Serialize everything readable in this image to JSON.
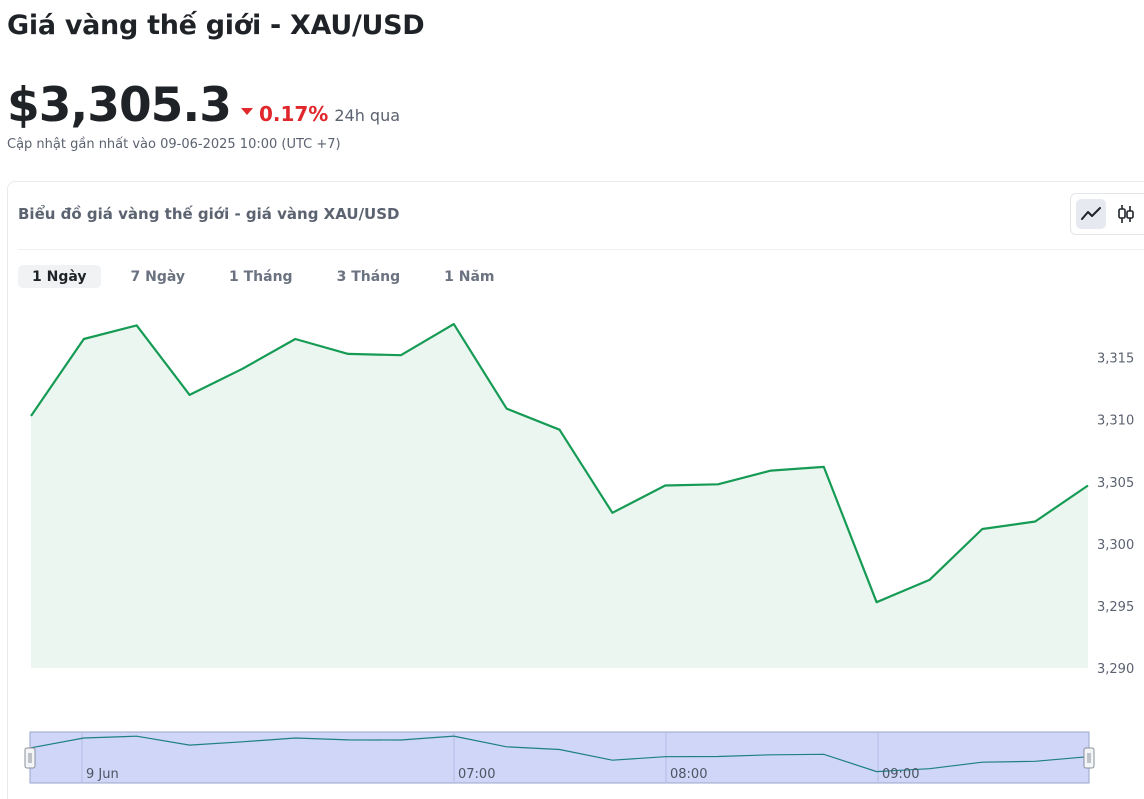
{
  "title": "Giá vàng thế giới - XAU/USD",
  "price": "$3,305.3",
  "change": "0.17%",
  "change_period": "24h qua",
  "updated": "Cập nhật gần nhất vào 09-06-2025 10:00 (UTC +7)",
  "colors": {
    "line": "#169b55",
    "fill": "#ecf6f0",
    "down": "#e0272b",
    "navigator": "#cfd6f7"
  },
  "chart_card": {
    "title": "Biểu đồ giá vàng thế giới - giá vàng XAU/USD",
    "line_icon": "line-chart-icon",
    "candle_icon": "candlestick-icon"
  },
  "tabs": [
    {
      "label": "1 Ngày",
      "active": true
    },
    {
      "label": "7 Ngày",
      "active": false
    },
    {
      "label": "1 Tháng",
      "active": false
    },
    {
      "label": "3 Tháng",
      "active": false
    },
    {
      "label": "1 Năm",
      "active": false
    }
  ],
  "chart_data": {
    "type": "area",
    "y_ticks": [
      "3,315",
      "3,310",
      "3,305",
      "3,300",
      "3,295",
      "3,290"
    ],
    "y_tick_values": [
      3315,
      3310,
      3305,
      3300,
      3295,
      3290
    ],
    "ylim": [
      3290,
      3319
    ],
    "values": [
      3310.3,
      3316.5,
      3317.6,
      3312.0,
      3314.1,
      3316.5,
      3315.3,
      3315.2,
      3317.7,
      3310.9,
      3309.2,
      3302.5,
      3304.7,
      3304.8,
      3305.9,
      3306.2,
      3295.3,
      3297.1,
      3301.2,
      3301.8,
      3304.7
    ],
    "navigator_labels": [
      "9 Jun",
      "07:00",
      "08:00",
      "09:00"
    ]
  }
}
